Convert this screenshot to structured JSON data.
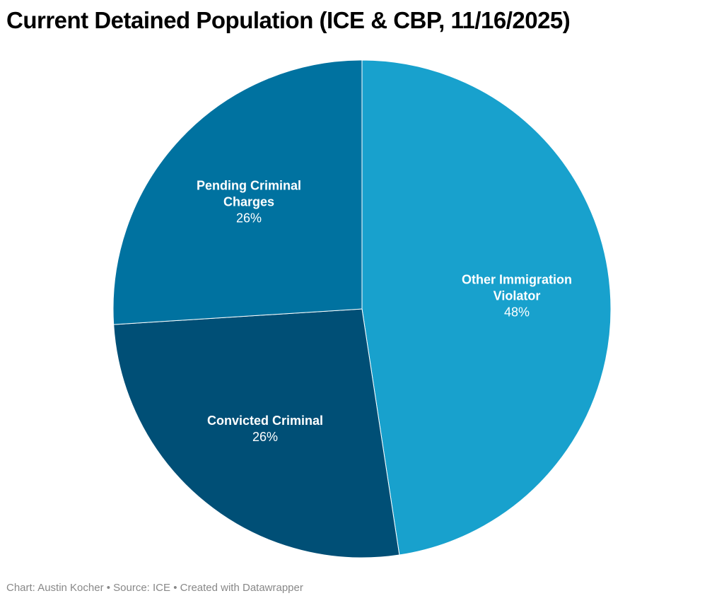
{
  "chart_data": {
    "type": "pie",
    "title": "Current Detained Population (ICE & CBP, 11/16/2025)",
    "slices": [
      {
        "name": "Other Immigration Violator",
        "name_lines": [
          "Other Immigration",
          "Violator"
        ],
        "value": 47.6,
        "label": "48%",
        "color": "#18a1cd"
      },
      {
        "name": "Convicted Criminal",
        "name_lines": [
          "Convicted Criminal"
        ],
        "value": 26.4,
        "label": "26%",
        "color": "#004f76"
      },
      {
        "name": "Pending Criminal Charges",
        "name_lines": [
          "Pending Criminal",
          "Charges"
        ],
        "value": 26.0,
        "label": "26%",
        "color": "#0072a0"
      }
    ],
    "start": "12 o'clock",
    "direction": "clockwise"
  },
  "footer": "Chart: Austin Kocher • Source: ICE • Created with Datawrapper"
}
